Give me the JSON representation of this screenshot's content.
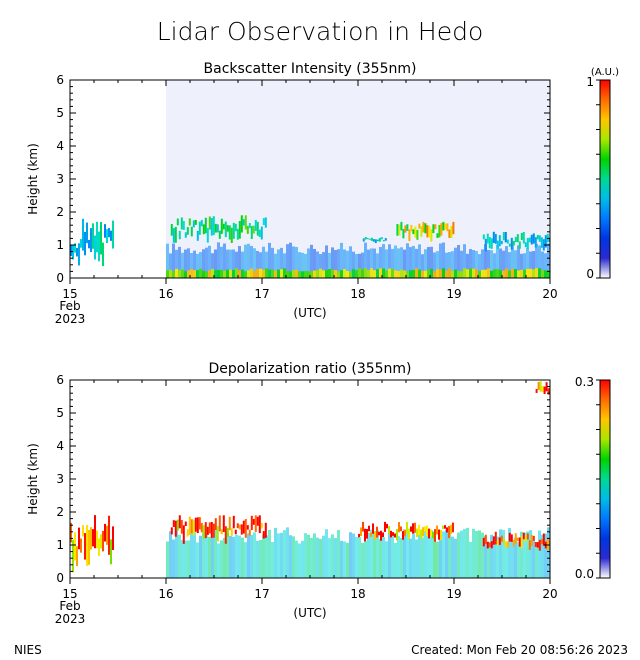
{
  "title": "Lidar Observation in Hedo",
  "footer": {
    "org": "NIES",
    "created": "Created: Mon Feb 20 08:56:26 2023"
  },
  "colors": {
    "frame": "#000000",
    "background": "#ffffff",
    "cloud_low": "#0000cc",
    "cloud_high": "#ff0000",
    "aerosol_depol": "#33ddcc"
  },
  "chart_data": [
    {
      "type": "heatmap",
      "title": "Backscatter Intensity (355nm)",
      "xlabel": "(UTC)",
      "ylabel": "Height (km)",
      "x_ticks": [
        "15",
        "16",
        "17",
        "18",
        "19",
        "20"
      ],
      "x_start_label": [
        "Feb",
        "2023"
      ],
      "xlim": [
        15,
        20
      ],
      "ylim": [
        0,
        6
      ],
      "y_ticks": [
        "0",
        "1",
        "2",
        "3",
        "4",
        "5",
        "6"
      ],
      "colorbar": {
        "min_label": "0",
        "max_label": "1",
        "unit": "(A.U.)",
        "colormap": "rainbow"
      },
      "features": [
        {
          "kind": "aerosol_layer",
          "start_day": 16.0,
          "end_day": 20.0,
          "top_km": 0.9,
          "level": 0.3
        },
        {
          "kind": "surface_band",
          "start_day": 16.0,
          "end_day": 20.0,
          "top_km": 0.25,
          "level": 0.7
        },
        {
          "kind": "cloud",
          "start_day": 15.0,
          "end_day": 15.45,
          "base_km": 0.2,
          "top_km": 1.8,
          "level": 0.45
        },
        {
          "kind": "cloud",
          "start_day": 16.05,
          "end_day": 17.05,
          "base_km": 1.0,
          "top_km": 1.9,
          "level": 0.55
        },
        {
          "kind": "cloud",
          "start_day": 18.05,
          "end_day": 18.3,
          "base_km": 1.05,
          "top_km": 1.25,
          "level": 0.45
        },
        {
          "kind": "cloud",
          "start_day": 18.4,
          "end_day": 19.0,
          "base_km": 1.1,
          "top_km": 1.7,
          "level": 0.75
        },
        {
          "kind": "cloud",
          "start_day": 19.3,
          "end_day": 20.0,
          "base_km": 0.8,
          "top_km": 1.4,
          "level": 0.45
        }
      ]
    },
    {
      "type": "heatmap",
      "title": "Depolarization ratio (355nm)",
      "xlabel": "(UTC)",
      "ylabel": "Height (km)",
      "x_ticks": [
        "15",
        "16",
        "17",
        "18",
        "19",
        "20"
      ],
      "x_start_label": [
        "Feb",
        "2023"
      ],
      "xlim": [
        15,
        20
      ],
      "ylim": [
        0,
        6
      ],
      "y_ticks": [
        "0",
        "1",
        "2",
        "3",
        "4",
        "5",
        "6"
      ],
      "colorbar": {
        "min_label": "0.0",
        "max_label": "0.3",
        "colormap": "rainbow"
      },
      "features": [
        {
          "kind": "aerosol_layer",
          "start_day": 16.0,
          "end_day": 20.0,
          "top_km": 1.3,
          "level": 0.45
        },
        {
          "kind": "cloud",
          "start_day": 15.0,
          "end_day": 15.45,
          "base_km": 0.0,
          "top_km": 2.0,
          "level": 0.95
        },
        {
          "kind": "cloud",
          "start_day": 16.05,
          "end_day": 17.05,
          "base_km": 1.0,
          "top_km": 1.9,
          "level": 0.95
        },
        {
          "kind": "cloud",
          "start_day": 18.0,
          "end_day": 19.0,
          "base_km": 1.1,
          "top_km": 1.7,
          "level": 0.95
        },
        {
          "kind": "cloud",
          "start_day": 19.3,
          "end_day": 20.0,
          "base_km": 0.8,
          "top_km": 1.4,
          "level": 0.95
        },
        {
          "kind": "cloud",
          "start_day": 19.85,
          "end_day": 20.0,
          "base_km": 5.5,
          "top_km": 6.0,
          "level": 0.95
        }
      ]
    }
  ]
}
